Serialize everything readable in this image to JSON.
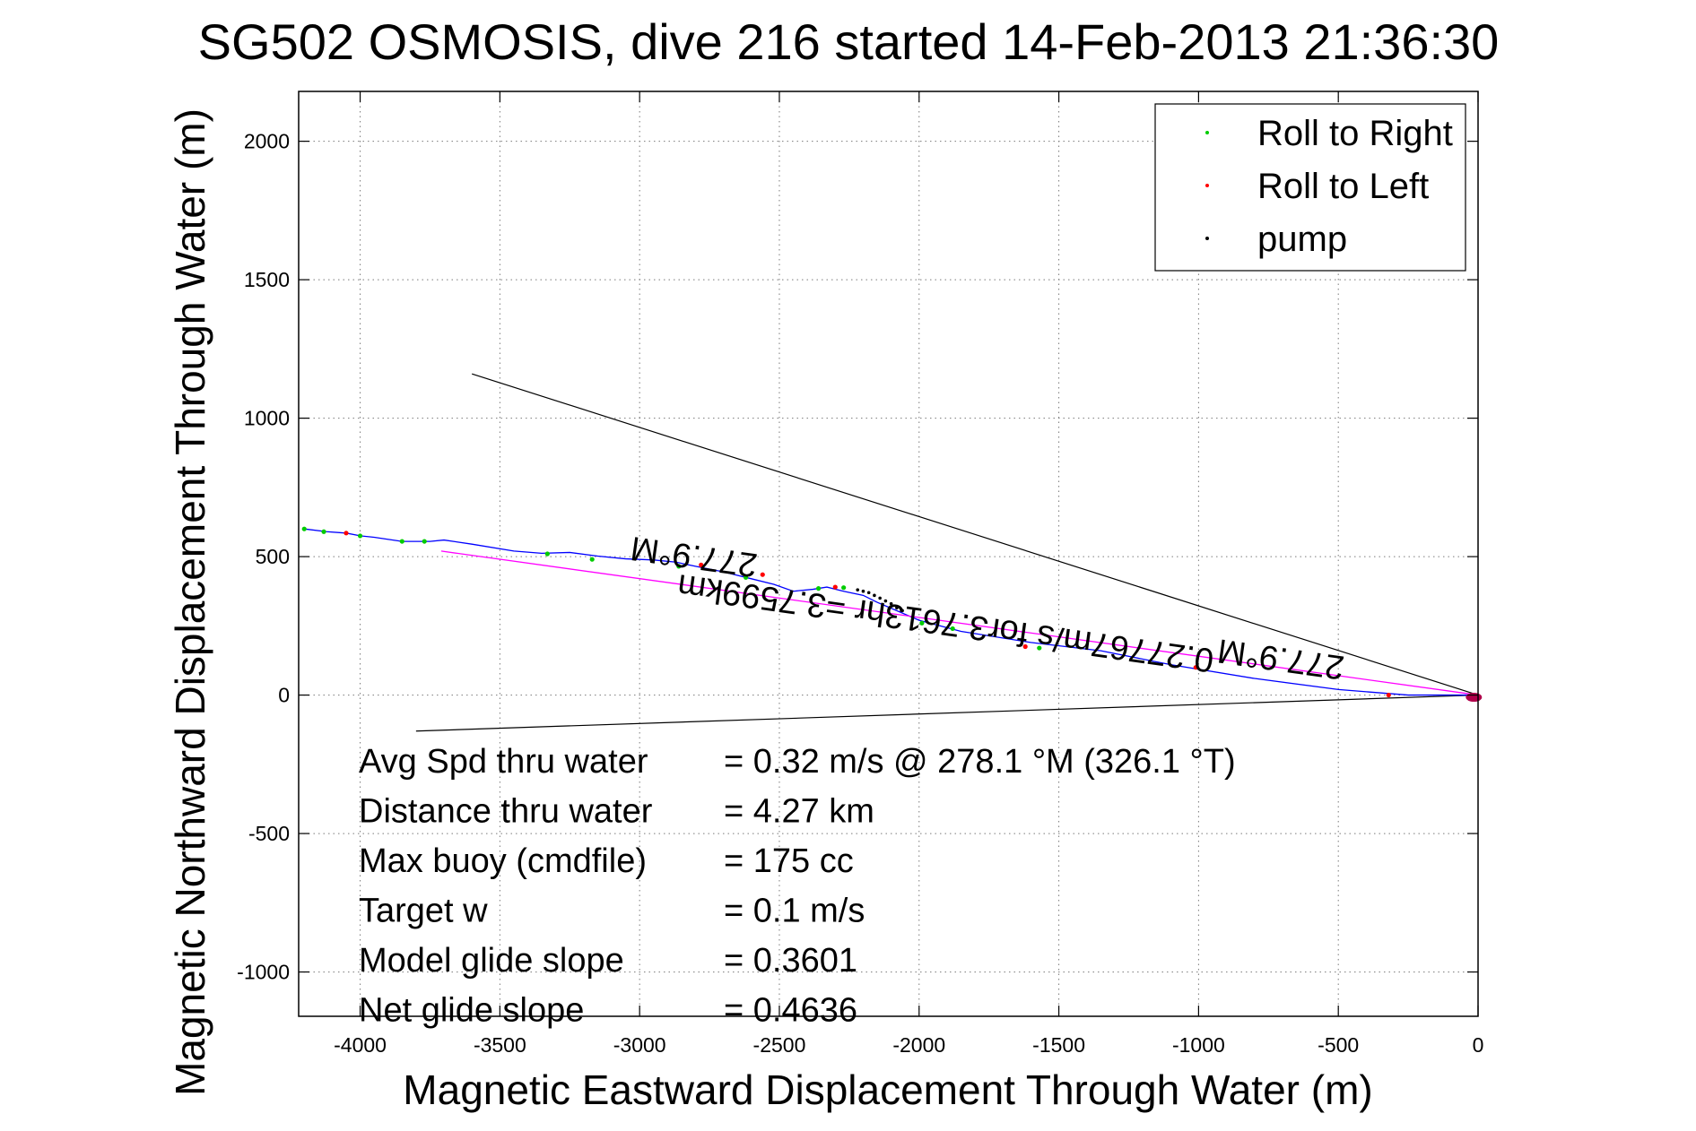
{
  "chart_data": {
    "type": "line",
    "title": "SG502 OSMOSIS, dive 216 started 14-Feb-2013 21:36:30",
    "xlabel": "Magnetic Eastward Displacement Through Water (m)",
    "ylabel": "Magnetic Northward Displacement Through Water (m)",
    "xlim": [
      -4220,
      0
    ],
    "ylim": [
      -1160,
      2180
    ],
    "grid": true,
    "grid_style": "dotted",
    "xticks": [
      -4000,
      -3500,
      -3000,
      -2500,
      -2000,
      -1500,
      -1000,
      -500,
      0
    ],
    "yticks": [
      -1000,
      -500,
      0,
      500,
      1000,
      1500,
      2000
    ],
    "legend": {
      "placement": "top-right",
      "entries": [
        {
          "label": "Roll to Right",
          "color": "#00cc00"
        },
        {
          "label": "Roll to Left",
          "color": "#ff0000"
        },
        {
          "label": "pump",
          "color": "#000000"
        }
      ]
    },
    "series": [
      {
        "color": "#0000ff",
        "style": "line",
        "x": [
          0,
          -60,
          -250,
          -500,
          -800,
          -1100,
          -1350,
          -1600,
          -1850,
          -2000,
          -2080,
          -2150,
          -2200,
          -2270,
          -2330,
          -2380,
          -2450,
          -2520,
          -2600,
          -2700,
          -2800,
          -2870,
          -2950,
          -3050,
          -3150,
          -3250,
          -3350,
          -3450,
          -3600,
          -3700,
          -3750,
          -3850,
          -3950,
          -4000,
          -4050,
          -4120,
          -4200
        ],
        "y": [
          0,
          0,
          0,
          20,
          60,
          110,
          160,
          190,
          230,
          270,
          305,
          335,
          360,
          375,
          390,
          382,
          375,
          400,
          420,
          445,
          465,
          480,
          488,
          492,
          502,
          515,
          512,
          520,
          545,
          560,
          555,
          555,
          570,
          575,
          585,
          590,
          600
        ]
      },
      {
        "color": "#ff00ff",
        "style": "line",
        "x": [
          0,
          -3710
        ],
        "y": [
          0,
          520
        ]
      }
    ],
    "markers": {
      "roll_right": {
        "color": "#00cc00",
        "x": [
          -4200,
          -4130,
          -4000,
          -3850,
          -3770,
          -3330,
          -3170,
          -2860,
          -2620,
          -2360,
          -2270,
          -1990,
          -1880,
          -1570
        ],
        "y": [
          600,
          590,
          575,
          555,
          555,
          510,
          490,
          465,
          425,
          385,
          388,
          260,
          240,
          170
        ]
      },
      "roll_left": {
        "color": "#ff0000",
        "x": [
          -4050,
          -2780,
          -2560,
          -2300,
          -1620,
          -1010,
          -320
        ],
        "y": [
          585,
          470,
          435,
          390,
          175,
          100,
          0
        ]
      },
      "pump": {
        "color": "#000000",
        "x": [
          -2220,
          -2200,
          -2180,
          -2160,
          -2140,
          -2120,
          -2100,
          -2080,
          -2060
        ],
        "y": [
          380,
          375,
          370,
          360,
          350,
          340,
          330,
          315,
          305
        ]
      }
    },
    "direction_lines": [
      {
        "x": [
          -3600,
          0
        ],
        "y": [
          1160,
          0
        ]
      },
      {
        "x": [
          -3800,
          0
        ],
        "y": [
          -130,
          0
        ]
      }
    ],
    "annotations": [
      {
        "text": "277.9°M",
        "x": -2800,
        "y": 540,
        "rotation_deg": 188
      },
      {
        "text": "0.27767m/s for3.7613hr =3.7599km",
        "x": -1900,
        "y": 300,
        "rotation_deg": 188
      },
      {
        "text": "277.9°M",
        "x": -700,
        "y": 170,
        "rotation_deg": 188
      }
    ],
    "stats": [
      {
        "label": "Avg Spd thru water",
        "value": "=  0.32 m/s @ 278.1 °M (326.1 °T)"
      },
      {
        "label": "Distance thru water",
        "value": "=  4.27 km"
      },
      {
        "label": "Max buoy (cmdfile)",
        "value": "= 175 cc"
      },
      {
        "label": "Target w",
        "value": "= 0.1 m/s"
      },
      {
        "label": "Model glide slope",
        "value": "= 0.3601"
      },
      {
        "label": "Net glide slope",
        "value": "= 0.4636"
      }
    ]
  }
}
